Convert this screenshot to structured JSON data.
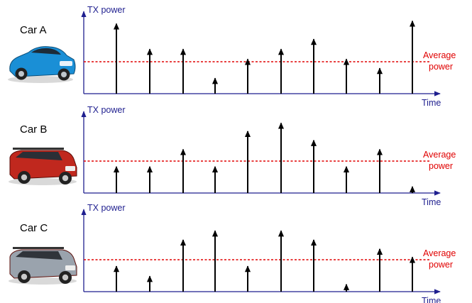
{
  "colors": {
    "axis": "#1f1f8f",
    "average_line": "#e00000",
    "arrow": "#000000",
    "car_a_body": "#1a8fd6",
    "car_b_body": "#c0281e",
    "car_c_body": "#9aa3ad"
  },
  "panels": [
    {
      "car_label": "Car A",
      "car_icon": "blue-sedan-icon",
      "y_label": "TX power",
      "x_label": "Time",
      "average_label_line1": "Average",
      "average_label_line2": "power",
      "average_level": 0.4,
      "arrows": [
        0.77,
        0.49,
        0.49,
        0.17,
        0.38,
        0.49,
        0.6,
        0.38,
        0.28,
        0.8
      ]
    },
    {
      "car_label": "Car B",
      "car_icon": "red-suv-icon",
      "y_label": "TX power",
      "x_label": "Time",
      "average_label_line1": "Average",
      "average_label_line2": "power",
      "average_level": 0.4,
      "arrows": [
        0.29,
        0.29,
        0.48,
        0.29,
        0.68,
        0.77,
        0.58,
        0.29,
        0.48,
        0.07
      ]
    },
    {
      "car_label": "Car C",
      "car_icon": "silver-suv-icon",
      "y_label": "TX power",
      "x_label": "Time",
      "average_label_line1": "Average",
      "average_label_line2": "power",
      "average_level": 0.4,
      "arrows": [
        0.28,
        0.17,
        0.57,
        0.67,
        0.28,
        0.67,
        0.57,
        0.08,
        0.47,
        0.38
      ]
    }
  ]
}
